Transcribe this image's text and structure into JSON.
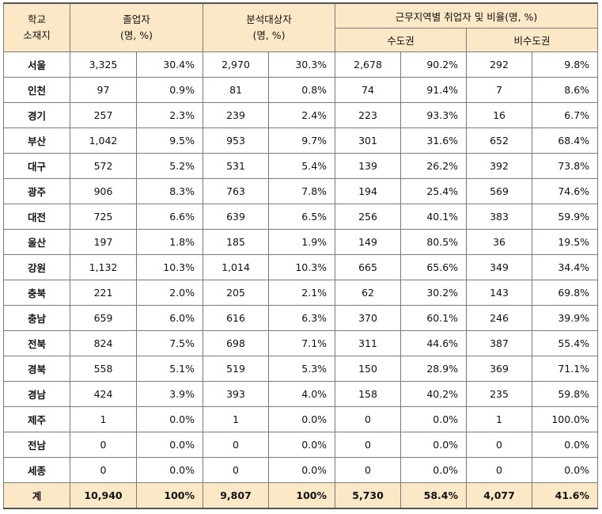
{
  "header": {
    "region_label_1": "학교",
    "region_label_2": "소재지",
    "graduates_label": "졸업자",
    "graduates_unit": "(명, %)",
    "analysis_label": "분석대상자",
    "analysis_unit": "(명, %)",
    "work_region_label": "근무지역별 취업자 및 비율(명, %)",
    "capital_label": "수도권",
    "noncapital_label": "비수도권"
  },
  "rows": [
    {
      "region": "서울",
      "grad": "3,325",
      "grad_pct": "30.4%",
      "ana": "2,970",
      "ana_pct": "30.3%",
      "cap": "2,678",
      "cap_pct": "90.2%",
      "non": "292",
      "non_pct": "9.8%"
    },
    {
      "region": "인천",
      "grad": "97",
      "grad_pct": "0.9%",
      "ana": "81",
      "ana_pct": "0.8%",
      "cap": "74",
      "cap_pct": "91.4%",
      "non": "7",
      "non_pct": "8.6%"
    },
    {
      "region": "경기",
      "grad": "257",
      "grad_pct": "2.3%",
      "ana": "239",
      "ana_pct": "2.4%",
      "cap": "223",
      "cap_pct": "93.3%",
      "non": "16",
      "non_pct": "6.7%"
    },
    {
      "region": "부산",
      "grad": "1,042",
      "grad_pct": "9.5%",
      "ana": "953",
      "ana_pct": "9.7%",
      "cap": "301",
      "cap_pct": "31.6%",
      "non": "652",
      "non_pct": "68.4%"
    },
    {
      "region": "대구",
      "grad": "572",
      "grad_pct": "5.2%",
      "ana": "531",
      "ana_pct": "5.4%",
      "cap": "139",
      "cap_pct": "26.2%",
      "non": "392",
      "non_pct": "73.8%"
    },
    {
      "region": "광주",
      "grad": "906",
      "grad_pct": "8.3%",
      "ana": "763",
      "ana_pct": "7.8%",
      "cap": "194",
      "cap_pct": "25.4%",
      "non": "569",
      "non_pct": "74.6%"
    },
    {
      "region": "대전",
      "grad": "725",
      "grad_pct": "6.6%",
      "ana": "639",
      "ana_pct": "6.5%",
      "cap": "256",
      "cap_pct": "40.1%",
      "non": "383",
      "non_pct": "59.9%"
    },
    {
      "region": "울산",
      "grad": "197",
      "grad_pct": "1.8%",
      "ana": "185",
      "ana_pct": "1.9%",
      "cap": "149",
      "cap_pct": "80.5%",
      "non": "36",
      "non_pct": "19.5%"
    },
    {
      "region": "강원",
      "grad": "1,132",
      "grad_pct": "10.3%",
      "ana": "1,014",
      "ana_pct": "10.3%",
      "cap": "665",
      "cap_pct": "65.6%",
      "non": "349",
      "non_pct": "34.4%"
    },
    {
      "region": "충북",
      "grad": "221",
      "grad_pct": "2.0%",
      "ana": "205",
      "ana_pct": "2.1%",
      "cap": "62",
      "cap_pct": "30.2%",
      "non": "143",
      "non_pct": "69.8%"
    },
    {
      "region": "충남",
      "grad": "659",
      "grad_pct": "6.0%",
      "ana": "616",
      "ana_pct": "6.3%",
      "cap": "370",
      "cap_pct": "60.1%",
      "non": "246",
      "non_pct": "39.9%"
    },
    {
      "region": "전북",
      "grad": "824",
      "grad_pct": "7.5%",
      "ana": "698",
      "ana_pct": "7.1%",
      "cap": "311",
      "cap_pct": "44.6%",
      "non": "387",
      "non_pct": "55.4%"
    },
    {
      "region": "경북",
      "grad": "558",
      "grad_pct": "5.1%",
      "ana": "519",
      "ana_pct": "5.3%",
      "cap": "150",
      "cap_pct": "28.9%",
      "non": "369",
      "non_pct": "71.1%"
    },
    {
      "region": "경남",
      "grad": "424",
      "grad_pct": "3.9%",
      "ana": "393",
      "ana_pct": "4.0%",
      "cap": "158",
      "cap_pct": "40.2%",
      "non": "235",
      "non_pct": "59.8%"
    },
    {
      "region": "제주",
      "grad": "1",
      "grad_pct": "0.0%",
      "ana": "1",
      "ana_pct": "0.0%",
      "cap": "0",
      "cap_pct": "0.0%",
      "non": "1",
      "non_pct": "100.0%"
    },
    {
      "region": "전남",
      "grad": "0",
      "grad_pct": "0.0%",
      "ana": "0",
      "ana_pct": "0.0%",
      "cap": "0",
      "cap_pct": "0.0%",
      "non": "0",
      "non_pct": "0.0%"
    },
    {
      "region": "세종",
      "grad": "0",
      "grad_pct": "0.0%",
      "ana": "0",
      "ana_pct": "0.0%",
      "cap": "0",
      "cap_pct": "0.0%",
      "non": "0",
      "non_pct": "0.0%"
    }
  ],
  "total": {
    "region": "계",
    "grad": "10,940",
    "grad_pct": "100%",
    "ana": "9,807",
    "ana_pct": "100%",
    "cap": "5,730",
    "cap_pct": "58.4%",
    "non": "4,077",
    "non_pct": "41.6%"
  }
}
